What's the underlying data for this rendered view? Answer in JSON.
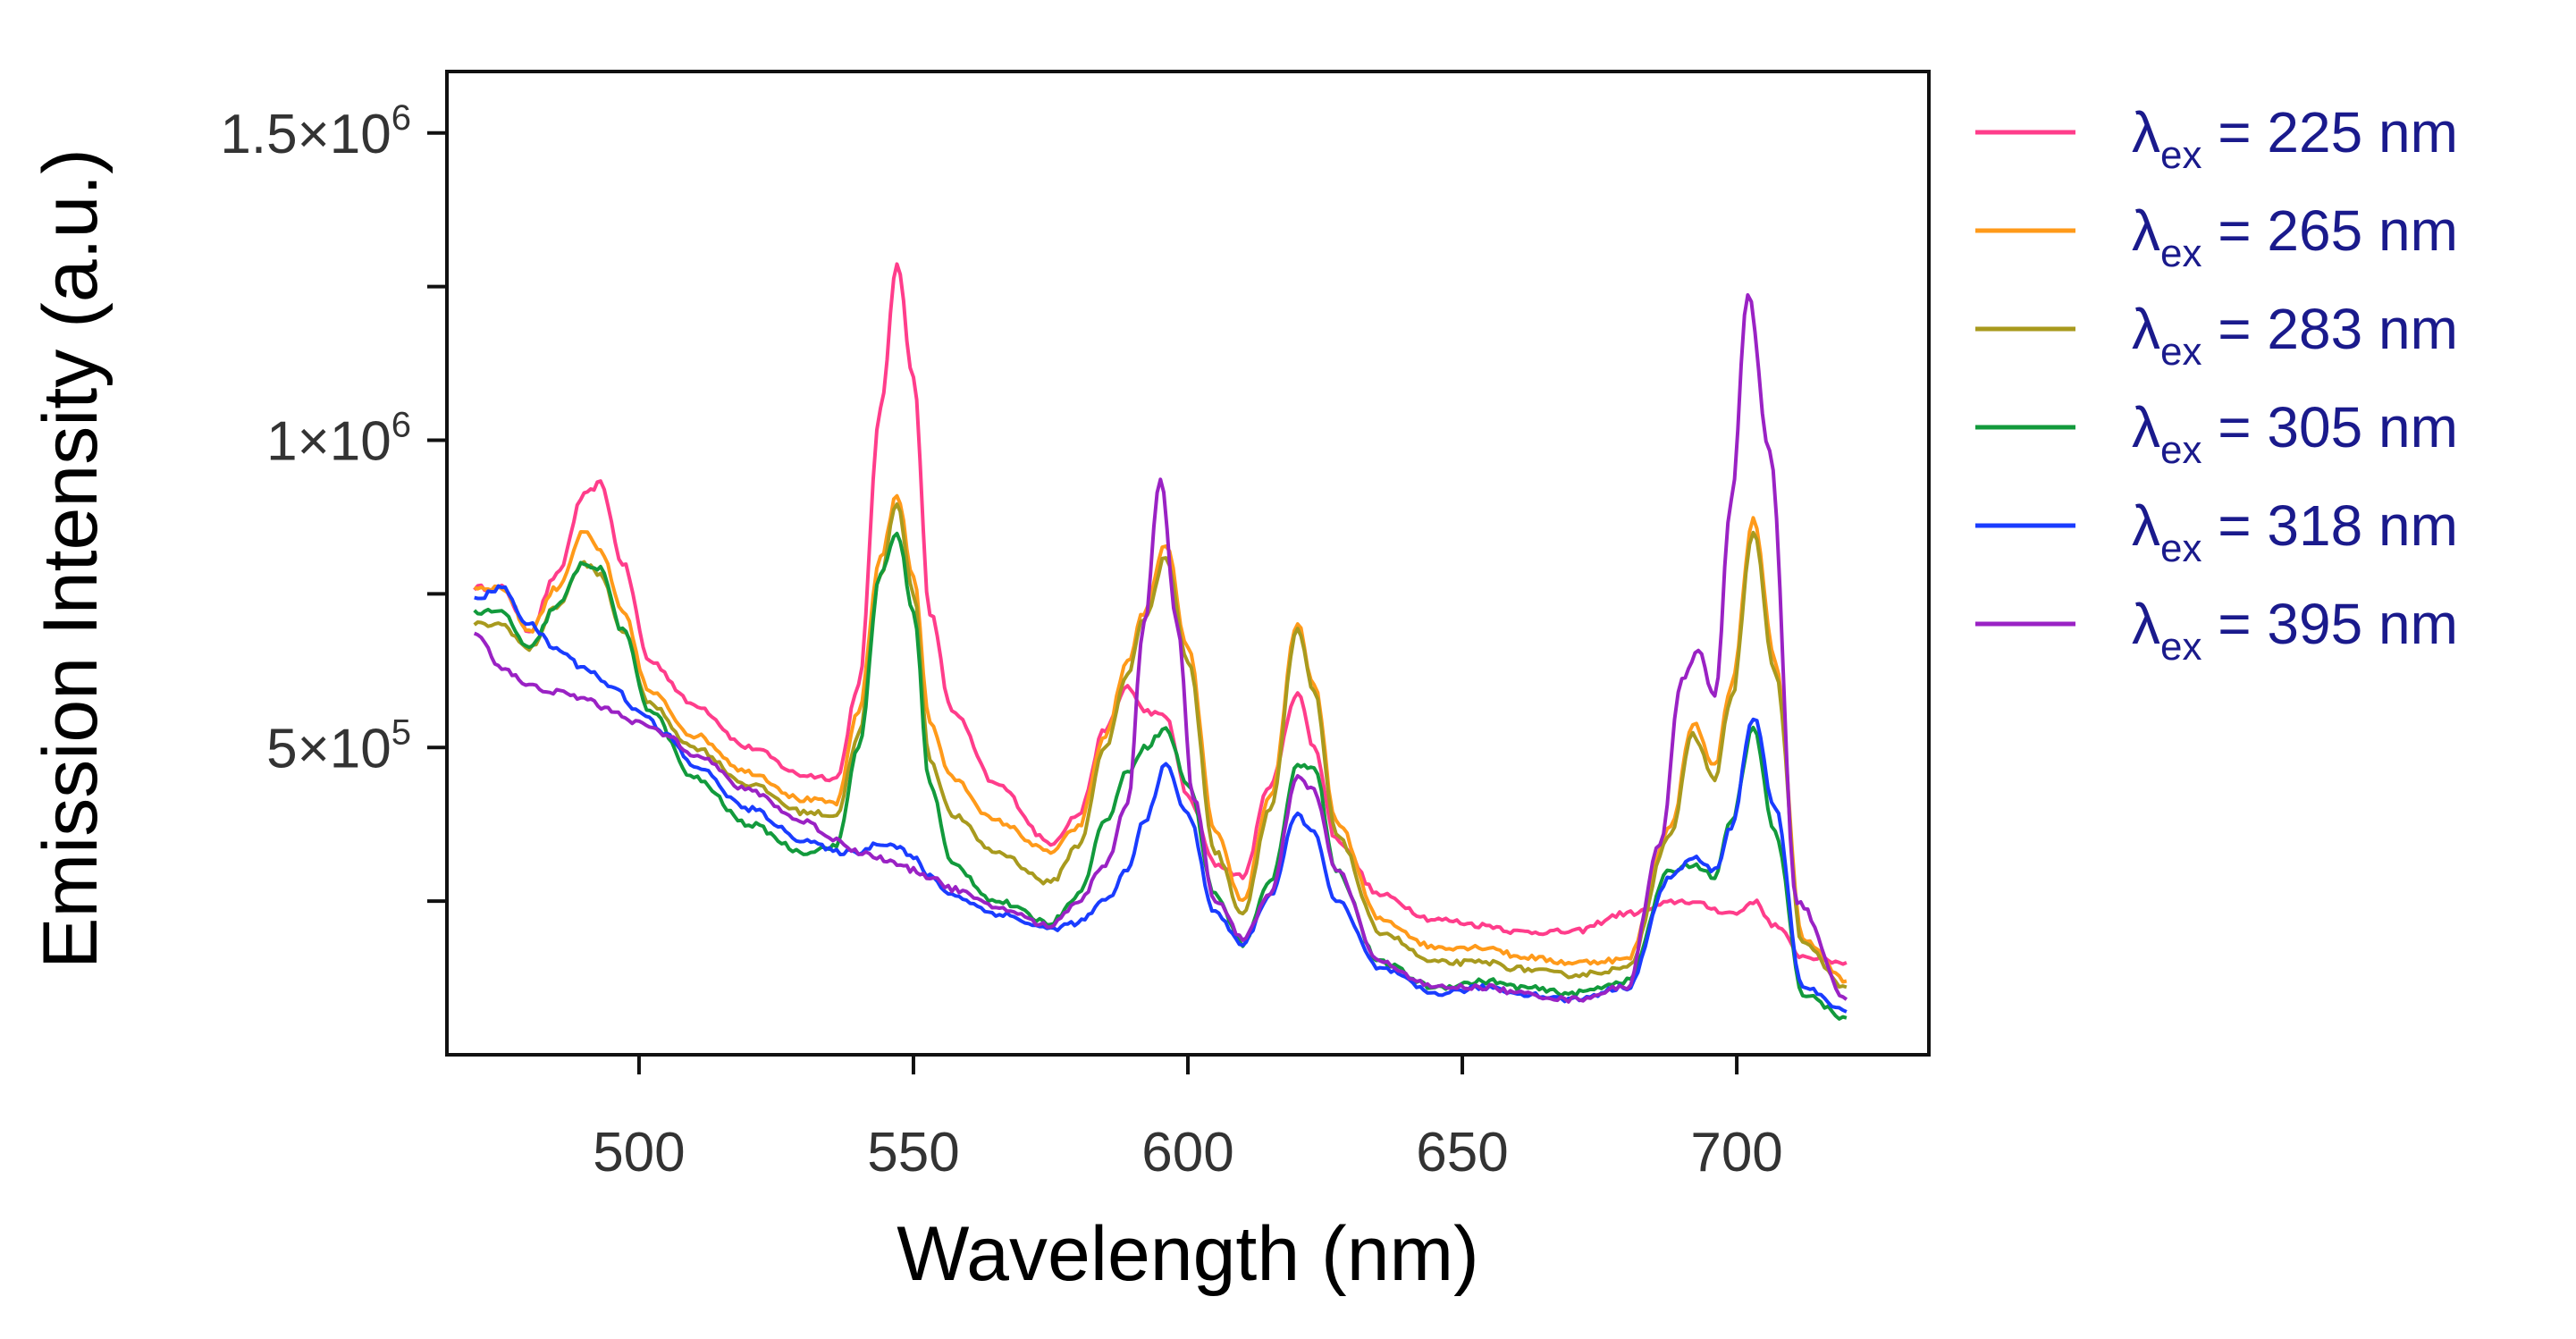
{
  "chart_data": {
    "type": "line",
    "title": "",
    "xlabel": "Wavelength (nm)",
    "ylabel": "Emission Intensity (a.u.)",
    "xlim": [
      465,
      735
    ],
    "ylim": [
      0,
      1600000
    ],
    "x_ticks": [
      {
        "value": 500,
        "label": "500"
      },
      {
        "value": 550,
        "label": "550"
      },
      {
        "value": 600,
        "label": "600"
      },
      {
        "value": 650,
        "label": "650"
      },
      {
        "value": 700,
        "label": "700"
      }
    ],
    "y_ticks": [
      {
        "value": 250000,
        "label": "",
        "exp": ""
      },
      {
        "value": 500000,
        "label": "5×10",
        "exp": "5"
      },
      {
        "value": 750000,
        "label": "",
        "exp": ""
      },
      {
        "value": 1000000,
        "label": "1×10",
        "exp": "6"
      },
      {
        "value": 1250000,
        "label": "",
        "exp": ""
      },
      {
        "value": 1500000,
        "label": "1.5×10",
        "exp": "6"
      }
    ],
    "grid": false,
    "legend_position": "right",
    "series": [
      {
        "name": "λex = 225 nm",
        "legend_main": "λ",
        "legend_sub": "ex",
        "legend_rest": " = 225 nm",
        "color": "#ff3d8b",
        "x": [
          470,
          475,
          480,
          485,
          490,
          493,
          497,
          502,
          510,
          520,
          530,
          536,
          540,
          544,
          547,
          550,
          553,
          557,
          565,
          575,
          580,
          585,
          589,
          592,
          596,
          600,
          605,
          610,
          615,
          620,
          623,
          627,
          635,
          645,
          655,
          660,
          670,
          680,
          690,
          700,
          703,
          707,
          712,
          720
        ],
        "y": [
          760000,
          760000,
          690000,
          780000,
          910000,
          930000,
          800000,
          640000,
          570000,
          500000,
          455000,
          450000,
          600000,
          1050000,
          1290000,
          1100000,
          720000,
          560000,
          440000,
          345000,
          390000,
          530000,
          600000,
          560000,
          550000,
          420000,
          310000,
          290000,
          440000,
          590000,
          500000,
          350000,
          260000,
          220000,
          210000,
          200000,
          200000,
          230000,
          250000,
          230000,
          250000,
          210000,
          160000,
          150000
        ]
      },
      {
        "name": "λex = 265 nm",
        "legend_main": "λ",
        "legend_sub": "ex",
        "legend_rest": " = 265 nm",
        "color": "#ff9a1a",
        "x": [
          470,
          475,
          480,
          485,
          490,
          493,
          497,
          502,
          510,
          520,
          530,
          536,
          540,
          544,
          547,
          550,
          553,
          557,
          565,
          575,
          580,
          585,
          589,
          592,
          596,
          600,
          605,
          610,
          615,
          620,
          623,
          627,
          635,
          645,
          655,
          660,
          670,
          680,
          688,
          692,
          696,
          699,
          703,
          707,
          712,
          720
        ],
        "y": [
          760000,
          760000,
          690000,
          760000,
          850000,
          820000,
          720000,
          590000,
          520000,
          460000,
          415000,
          410000,
          560000,
          810000,
          910000,
          780000,
          540000,
          450000,
          380000,
          330000,
          370000,
          520000,
          640000,
          720000,
          830000,
          660000,
          360000,
          250000,
          420000,
          700000,
          600000,
          380000,
          220000,
          175000,
          175000,
          160000,
          150000,
          155000,
          370000,
          540000,
          470000,
          600000,
          870000,
          640000,
          190000,
          120000
        ]
      },
      {
        "name": "λex = 283 nm",
        "legend_main": "λ",
        "legend_sub": "ex",
        "legend_rest": " = 283 nm",
        "color": "#a89a1e",
        "x": [
          470,
          475,
          480,
          485,
          490,
          493,
          497,
          502,
          510,
          520,
          530,
          536,
          540,
          544,
          547,
          550,
          553,
          557,
          565,
          575,
          580,
          585,
          589,
          592,
          596,
          600,
          605,
          610,
          615,
          620,
          623,
          627,
          635,
          645,
          655,
          660,
          670,
          680,
          688,
          692,
          696,
          699,
          703,
          707,
          712,
          720
        ],
        "y": [
          700000,
          700000,
          660000,
          730000,
          800000,
          780000,
          690000,
          570000,
          500000,
          440000,
          395000,
          390000,
          520000,
          780000,
          900000,
          750000,
          480000,
          390000,
          330000,
          280000,
          340000,
          500000,
          620000,
          710000,
          810000,
          640000,
          330000,
          230000,
          400000,
          690000,
          590000,
          360000,
          200000,
          150000,
          150000,
          140000,
          130000,
          140000,
          360000,
          520000,
          450000,
          580000,
          850000,
          620000,
          180000,
          110000
        ]
      },
      {
        "name": "λex = 305 nm",
        "legend_main": "λ",
        "legend_sub": "ex",
        "legend_rest": " = 305 nm",
        "color": "#129a3c",
        "x": [
          470,
          475,
          480,
          485,
          490,
          493,
          497,
          502,
          510,
          520,
          530,
          536,
          540,
          544,
          547,
          550,
          553,
          557,
          565,
          575,
          580,
          585,
          589,
          592,
          596,
          600,
          605,
          610,
          615,
          620,
          623,
          627,
          635,
          645,
          655,
          660,
          670,
          680,
          688,
          692,
          696,
          699,
          703,
          707,
          712,
          720
        ],
        "y": [
          720000,
          720000,
          660000,
          730000,
          800000,
          790000,
          690000,
          560000,
          450000,
          375000,
          330000,
          340000,
          500000,
          780000,
          850000,
          720000,
          440000,
          310000,
          250000,
          215000,
          260000,
          380000,
          460000,
          500000,
          530000,
          440000,
          260000,
          180000,
          280000,
          470000,
          470000,
          300000,
          150000,
          110000,
          120000,
          110000,
          100000,
          120000,
          300000,
          310000,
          290000,
          380000,
          530000,
          360000,
          100000,
          60000
        ]
      },
      {
        "name": "λex = 318 nm",
        "legend_main": "λ",
        "legend_sub": "ex",
        "legend_rest": " = 318 nm",
        "color": "#1a3cff",
        "x": [
          470,
          475,
          480,
          485,
          490,
          495,
          500,
          505,
          510,
          520,
          530,
          536,
          540,
          544,
          547,
          550,
          553,
          557,
          565,
          575,
          580,
          585,
          589,
          592,
          596,
          600,
          605,
          610,
          615,
          620,
          623,
          627,
          635,
          645,
          655,
          660,
          670,
          680,
          688,
          692,
          696,
          699,
          703,
          707,
          712,
          720
        ],
        "y": [
          740000,
          760000,
          700000,
          660000,
          630000,
          600000,
          560000,
          520000,
          470000,
          400000,
          350000,
          330000,
          330000,
          345000,
          340000,
          320000,
          290000,
          260000,
          230000,
          205000,
          215000,
          250000,
          300000,
          380000,
          470000,
          390000,
          230000,
          180000,
          260000,
          390000,
          360000,
          250000,
          140000,
          100000,
          110000,
          100000,
          90000,
          110000,
          290000,
          320000,
          300000,
          370000,
          550000,
          400000,
          110000,
          70000
        ]
      },
      {
        "name": "λex = 395 nm",
        "legend_main": "λ",
        "legend_sub": "ex",
        "legend_rest": " = 395 nm",
        "color": "#9a22c4",
        "x": [
          470,
          475,
          480,
          485,
          490,
          495,
          500,
          505,
          510,
          520,
          530,
          536,
          540,
          544,
          547,
          550,
          553,
          557,
          565,
          575,
          580,
          585,
          589,
          592,
          595,
          598,
          601,
          605,
          610,
          615,
          620,
          623,
          627,
          635,
          645,
          655,
          660,
          670,
          680,
          686,
          690,
          693,
          696,
          699,
          702,
          706,
          711,
          720
        ],
        "y": [
          690000,
          630000,
          600000,
          590000,
          580000,
          560000,
          540000,
          520000,
          490000,
          430000,
          380000,
          350000,
          330000,
          320000,
          310000,
          300000,
          290000,
          270000,
          240000,
          210000,
          250000,
          310000,
          410000,
          700000,
          940000,
          700000,
          420000,
          250000,
          190000,
          260000,
          450000,
          430000,
          300000,
          150000,
          110000,
          110000,
          100000,
          90000,
          110000,
          340000,
          610000,
          660000,
          580000,
          900000,
          1240000,
          980000,
          250000,
          90000
        ]
      }
    ]
  }
}
